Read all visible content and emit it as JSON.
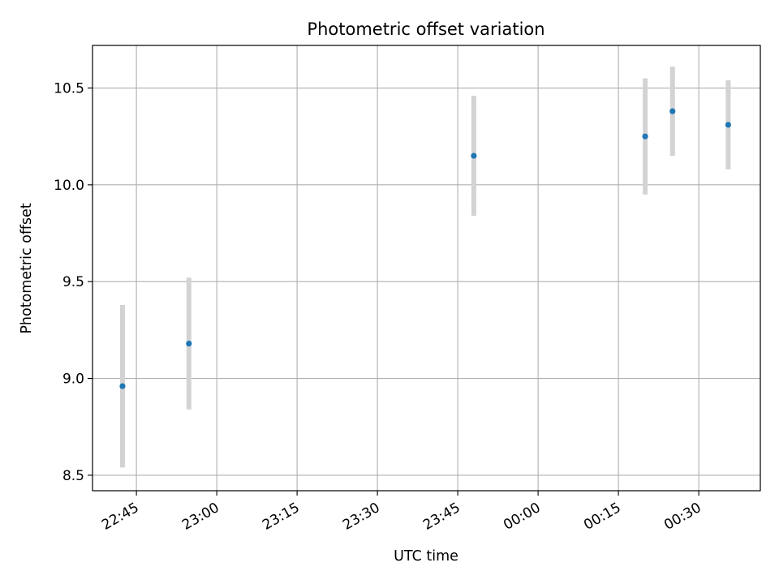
{
  "chart_data": {
    "type": "scatter",
    "title": "Photometric offset variation",
    "xlabel": "UTC time",
    "ylabel": "Photometric offset",
    "x_ticks": [
      "22:45",
      "23:00",
      "23:15",
      "23:30",
      "23:45",
      "00:00",
      "00:15",
      "00:30"
    ],
    "y_ticks": [
      "8.5",
      "9.0",
      "9.5",
      "10.0",
      "10.5"
    ],
    "xlim": [
      "22:36.8",
      "00:41.5"
    ],
    "ylim": [
      8.42,
      10.72
    ],
    "grid": true,
    "point_color": "#1f77b4",
    "errorbar_color": "#d3d3d3",
    "points": [
      {
        "x": "22:42.4",
        "y": 8.96,
        "yerr": 0.42
      },
      {
        "x": "22:54.8",
        "y": 9.18,
        "yerr": 0.34
      },
      {
        "x": "23:48.0",
        "y": 10.15,
        "yerr": 0.31
      },
      {
        "x": "00:20.0",
        "y": 10.25,
        "yerr": 0.3
      },
      {
        "x": "00:25.1",
        "y": 10.38,
        "yerr": 0.23
      },
      {
        "x": "00:35.5",
        "y": 10.31,
        "yerr": 0.23
      }
    ]
  }
}
